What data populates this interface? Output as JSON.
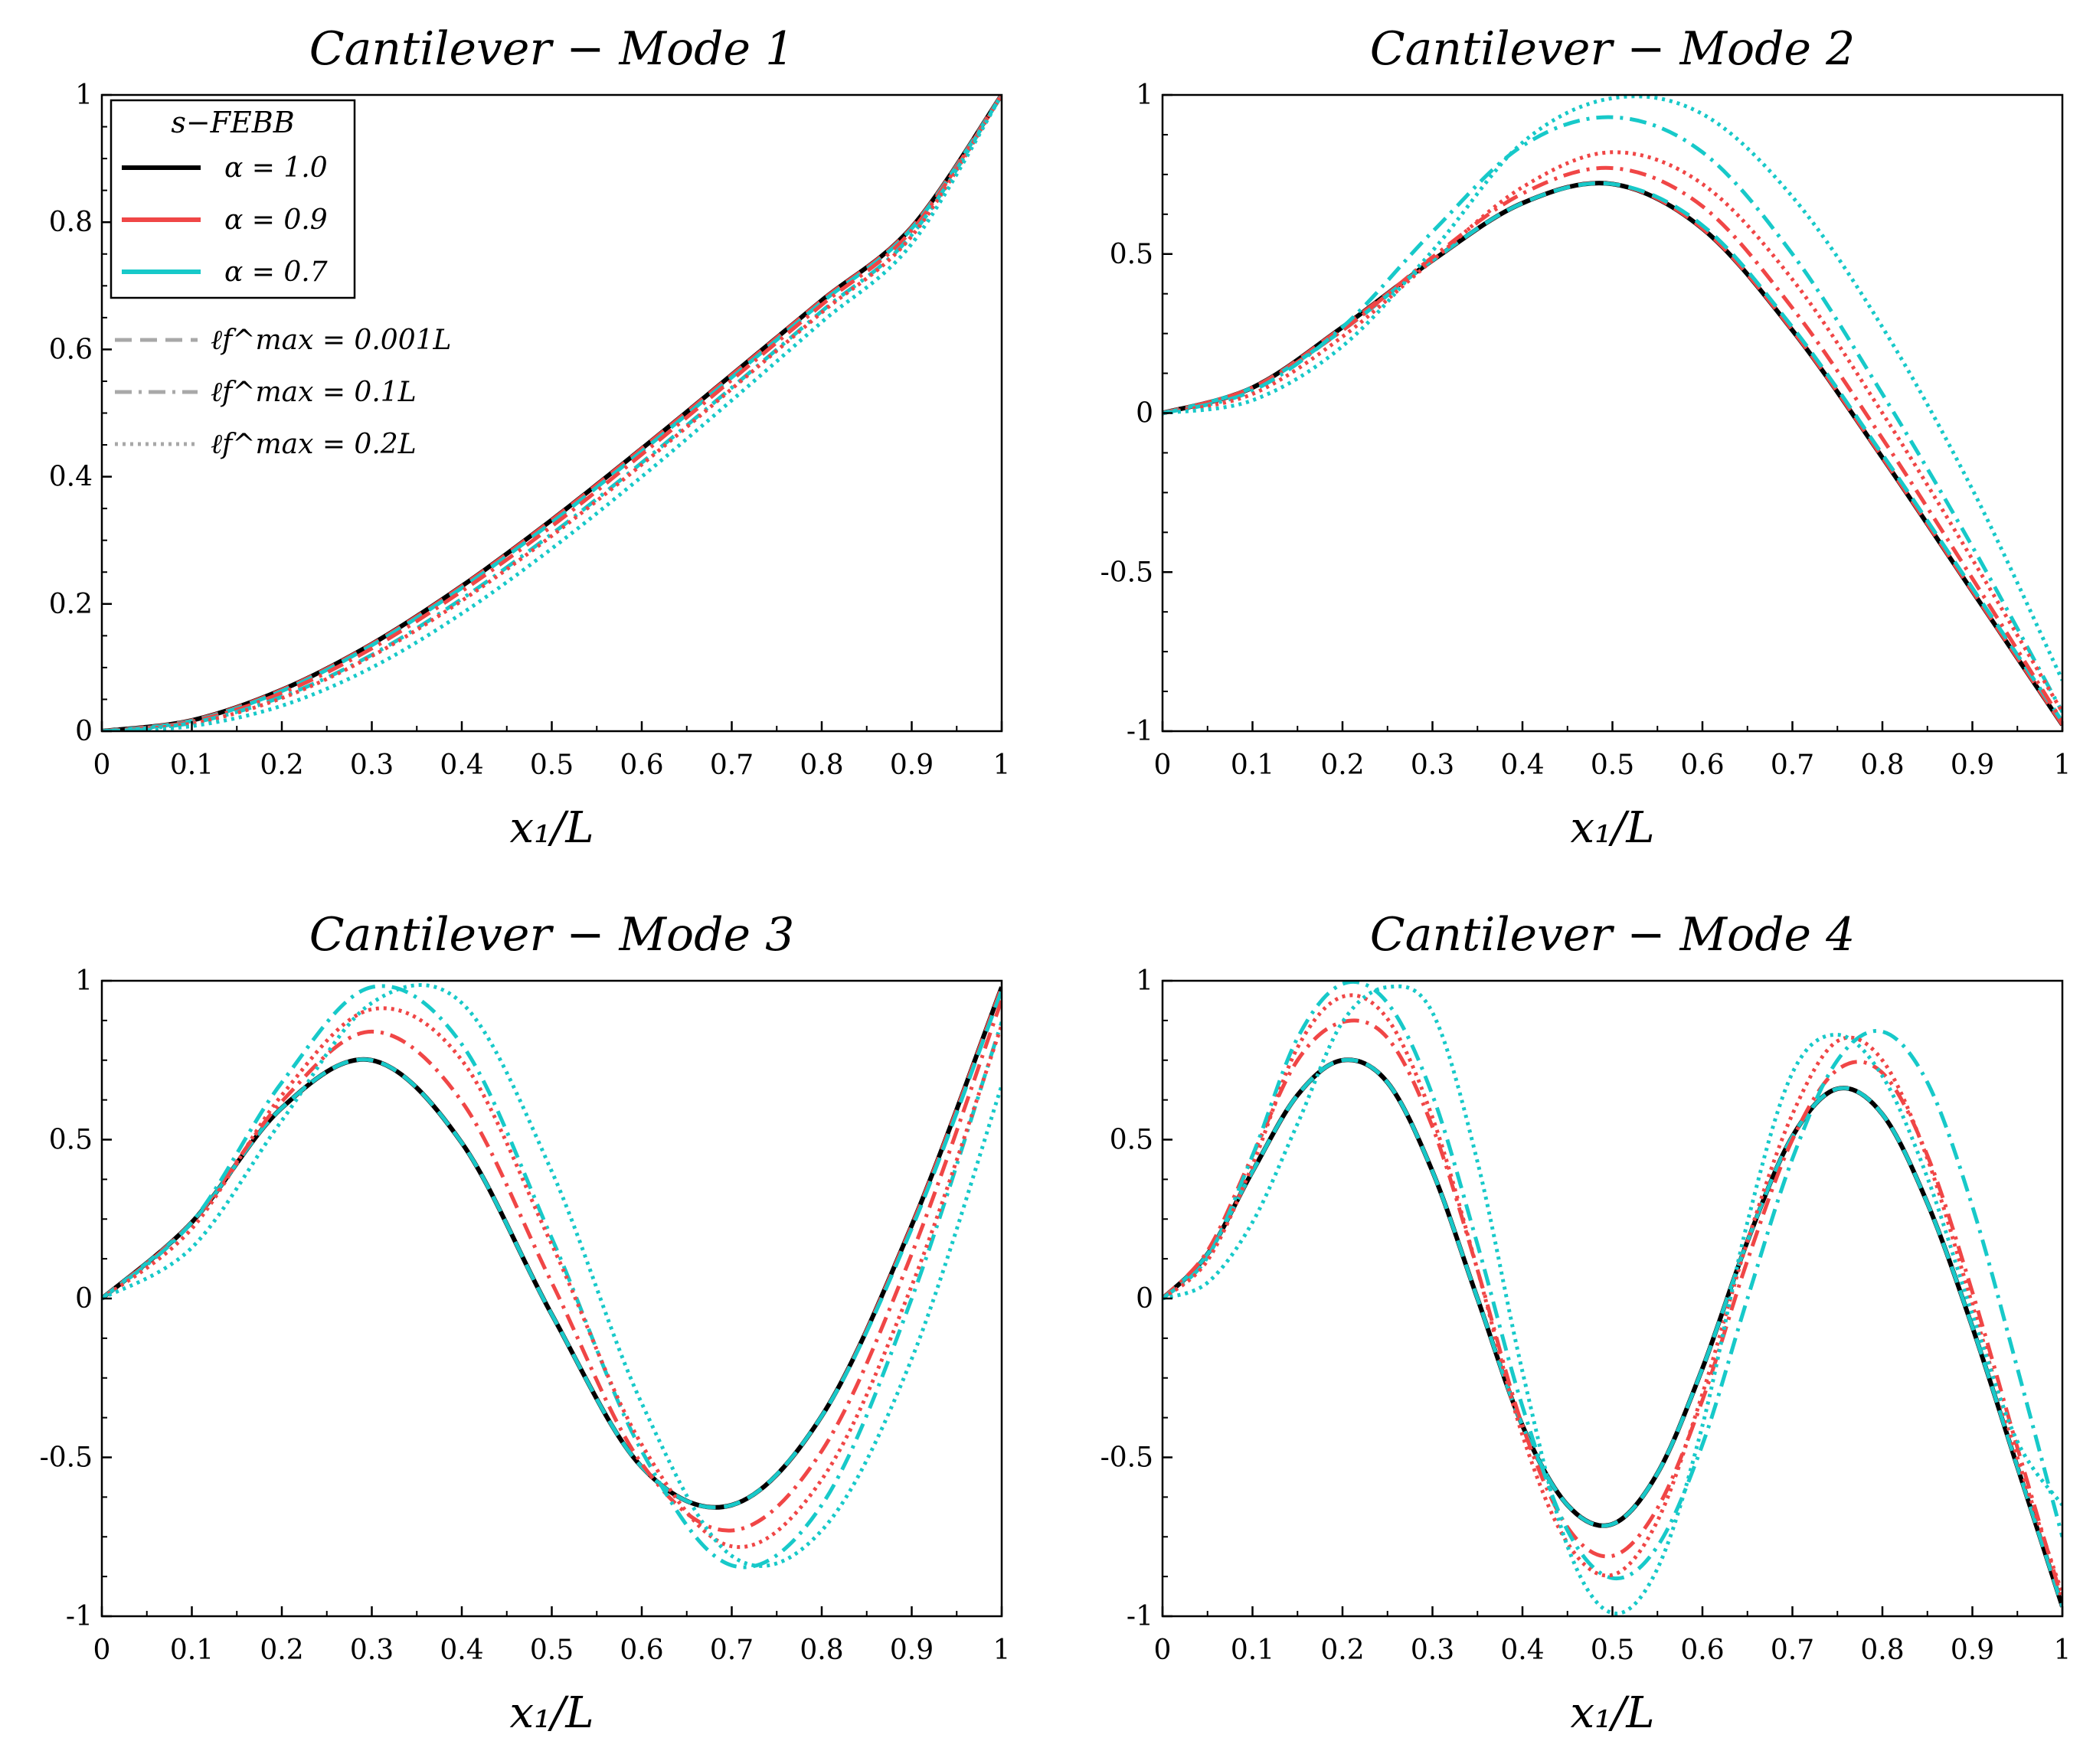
{
  "colors": {
    "black": "#000000",
    "red": "#f04646",
    "cyan": "#17c9c9",
    "gray": "#a8a8a8"
  },
  "legend": {
    "title": "s−FEBB",
    "alpha_entries": [
      "α = 1.0",
      "α = 0.9",
      "α = 0.7"
    ],
    "length_entries": [
      "ℓf^max = 0.001L",
      "ℓf^max = 0.1L",
      "ℓf^max = 0.2L"
    ]
  },
  "chart_data": [
    {
      "type": "line",
      "title": "Cantilever − Mode 1",
      "xlabel": "x₁/L",
      "ylabel": "",
      "xlim": [
        0,
        1
      ],
      "ylim": [
        0,
        1
      ],
      "xticks": [
        "0",
        "0.1",
        "0.2",
        "0.3",
        "0.4",
        "0.5",
        "0.6",
        "0.7",
        "0.8",
        "0.9",
        "1"
      ],
      "yticks": [
        "0",
        "0.2",
        "0.4",
        "0.6",
        "0.8",
        "1"
      ],
      "x": [
        0,
        0.1,
        0.2,
        0.3,
        0.4,
        0.5,
        0.6,
        0.7,
        0.8,
        0.9,
        1.0
      ],
      "series": [
        {
          "name": "α = 1.0, ℓ = 0.001L",
          "color": "black",
          "style": "solid",
          "values": [
            0,
            0.017,
            0.065,
            0.137,
            0.228,
            0.332,
            0.444,
            0.56,
            0.677,
            0.792,
            1.0
          ]
        },
        {
          "name": "α = 0.9, ℓ = 0.001L",
          "color": "red",
          "style": "dashed",
          "values": [
            0,
            0.017,
            0.065,
            0.137,
            0.228,
            0.332,
            0.444,
            0.56,
            0.677,
            0.792,
            1.0
          ]
        },
        {
          "name": "α = 0.7, ℓ = 0.001L",
          "color": "cyan",
          "style": "dashed",
          "values": [
            0,
            0.016,
            0.063,
            0.135,
            0.225,
            0.328,
            0.44,
            0.556,
            0.674,
            0.79,
            1.0
          ]
        },
        {
          "name": "α = 0.9, ℓ = 0.1L",
          "color": "red",
          "style": "dashdot",
          "values": [
            0,
            0.015,
            0.06,
            0.13,
            0.22,
            0.322,
            0.435,
            0.552,
            0.67,
            0.787,
            1.0
          ]
        },
        {
          "name": "α = 0.7, ℓ = 0.1L",
          "color": "cyan",
          "style": "dashdot",
          "values": [
            0,
            0.013,
            0.054,
            0.12,
            0.208,
            0.31,
            0.422,
            0.54,
            0.66,
            0.78,
            1.0
          ]
        },
        {
          "name": "α = 0.9, ℓ = 0.2L",
          "color": "red",
          "style": "dotted",
          "values": [
            0,
            0.012,
            0.052,
            0.118,
            0.205,
            0.307,
            0.419,
            0.538,
            0.658,
            0.778,
            1.0
          ]
        },
        {
          "name": "α = 0.7, ℓ = 0.2L",
          "color": "cyan",
          "style": "dotted",
          "values": [
            0,
            0.008,
            0.04,
            0.1,
            0.185,
            0.287,
            0.4,
            0.52,
            0.643,
            0.766,
            1.0
          ]
        }
      ]
    },
    {
      "type": "line",
      "title": "Cantilever − Mode 2",
      "xlabel": "x₁/L",
      "ylabel": "",
      "xlim": [
        0,
        1
      ],
      "ylim": [
        -1,
        1
      ],
      "xticks": [
        "0",
        "0.1",
        "0.2",
        "0.3",
        "0.4",
        "0.5",
        "0.6",
        "0.7",
        "0.8",
        "0.9",
        "1"
      ],
      "yticks": [
        "-1",
        "-0.5",
        "0",
        "0.5",
        "1"
      ],
      "x": [
        0,
        0.1,
        0.2,
        0.3,
        0.4,
        0.5,
        0.6,
        0.7,
        0.8,
        0.9,
        1.0
      ],
      "series": [
        {
          "name": "α = 1.0, ℓ = 0.001L",
          "color": "black",
          "style": "solid",
          "values": [
            0,
            0.08,
            0.27,
            0.48,
            0.66,
            0.72,
            0.58,
            0.26,
            -0.14,
            -0.56,
            -0.98
          ]
        },
        {
          "name": "α = 0.9, ℓ = 0.001L",
          "color": "red",
          "style": "dashed",
          "values": [
            0,
            0.08,
            0.27,
            0.48,
            0.66,
            0.72,
            0.58,
            0.26,
            -0.14,
            -0.56,
            -0.98
          ]
        },
        {
          "name": "α = 0.7, ℓ = 0.001L",
          "color": "cyan",
          "style": "dashed",
          "values": [
            0,
            0.08,
            0.26,
            0.48,
            0.66,
            0.72,
            0.59,
            0.27,
            -0.13,
            -0.55,
            -0.97
          ]
        },
        {
          "name": "α = 0.9, ℓ = 0.1L",
          "color": "red",
          "style": "dashdot",
          "values": [
            0,
            0.08,
            0.26,
            0.49,
            0.69,
            0.77,
            0.65,
            0.33,
            -0.08,
            -0.52,
            -0.97
          ]
        },
        {
          "name": "α = 0.7, ℓ = 0.1L",
          "color": "cyan",
          "style": "dashdot",
          "values": [
            0,
            0.07,
            0.27,
            0.57,
            0.84,
            0.93,
            0.82,
            0.5,
            0.06,
            -0.42,
            -0.94
          ]
        },
        {
          "name": "α = 0.9, ℓ = 0.2L",
          "color": "red",
          "style": "dotted",
          "values": [
            0,
            0.06,
            0.24,
            0.48,
            0.71,
            0.82,
            0.72,
            0.42,
            0.0,
            -0.46,
            -0.94
          ]
        },
        {
          "name": "α = 0.7, ℓ = 0.2L",
          "color": "cyan",
          "style": "dotted",
          "values": [
            0,
            0.04,
            0.21,
            0.51,
            0.85,
            0.99,
            0.94,
            0.68,
            0.27,
            -0.24,
            -0.84
          ]
        }
      ]
    },
    {
      "type": "line",
      "title": "Cantilever − Mode 3",
      "xlabel": "x₁/L",
      "ylabel": "",
      "xlim": [
        0,
        1
      ],
      "ylim": [
        -1,
        1
      ],
      "xticks": [
        "0",
        "0.1",
        "0.2",
        "0.3",
        "0.4",
        "0.5",
        "0.6",
        "0.7",
        "0.8",
        "0.9",
        "1"
      ],
      "yticks": [
        "-1",
        "-0.5",
        "0",
        "0.5",
        "1"
      ],
      "x": [
        0,
        0.1,
        0.2,
        0.3,
        0.4,
        0.5,
        0.6,
        0.7,
        0.8,
        0.9,
        1.0
      ],
      "series": [
        {
          "name": "α = 1.0, ℓ = 0.001L",
          "color": "black",
          "style": "solid",
          "values": [
            0,
            0.24,
            0.6,
            0.75,
            0.49,
            -0.05,
            -0.53,
            -0.65,
            -0.37,
            0.23,
            0.98
          ]
        },
        {
          "name": "α = 0.9, ℓ = 0.001L",
          "color": "red",
          "style": "dashed",
          "values": [
            0,
            0.24,
            0.6,
            0.75,
            0.49,
            -0.05,
            -0.53,
            -0.65,
            -0.37,
            0.23,
            0.98
          ]
        },
        {
          "name": "α = 0.7, ℓ = 0.001L",
          "color": "cyan",
          "style": "dashed",
          "values": [
            0,
            0.24,
            0.6,
            0.75,
            0.49,
            -0.05,
            -0.53,
            -0.65,
            -0.37,
            0.22,
            0.97
          ]
        },
        {
          "name": "α = 0.9, ℓ = 0.1L",
          "color": "red",
          "style": "dashdot",
          "values": [
            0,
            0.24,
            0.62,
            0.84,
            0.62,
            0.05,
            -0.52,
            -0.73,
            -0.48,
            0.14,
            0.94
          ]
        },
        {
          "name": "α = 0.7, ℓ = 0.1L",
          "color": "cyan",
          "style": "dashdot",
          "values": [
            0,
            0.24,
            0.68,
            0.98,
            0.8,
            0.19,
            -0.48,
            -0.84,
            -0.65,
            0.0,
            0.87
          ]
        },
        {
          "name": "α = 0.9, ℓ = 0.2L",
          "color": "red",
          "style": "dotted",
          "values": [
            0,
            0.22,
            0.64,
            0.91,
            0.75,
            0.17,
            -0.46,
            -0.78,
            -0.57,
            0.04,
            0.86
          ]
        },
        {
          "name": "α = 0.7, ℓ = 0.2L",
          "color": "cyan",
          "style": "dotted",
          "values": [
            0,
            0.16,
            0.56,
            0.93,
            0.93,
            0.4,
            -0.33,
            -0.81,
            -0.73,
            -0.19,
            0.67
          ]
        }
      ]
    },
    {
      "type": "line",
      "title": "Cantilever − Mode 4",
      "xlabel": "x₁/L",
      "ylabel": "",
      "xlim": [
        0,
        1
      ],
      "ylim": [
        -1,
        1
      ],
      "xticks": [
        "0",
        "0.1",
        "0.2",
        "0.3",
        "0.4",
        "0.5",
        "0.6",
        "0.7",
        "0.8",
        "0.9",
        "1"
      ],
      "yticks": [
        "-1",
        "-0.5",
        "0",
        "0.5",
        "1"
      ],
      "x": [
        0,
        0.05,
        0.1,
        0.15,
        0.2,
        0.25,
        0.3,
        0.35,
        0.4,
        0.45,
        0.5,
        0.55,
        0.6,
        0.65,
        0.7,
        0.75,
        0.8,
        0.85,
        0.9,
        0.95,
        1.0
      ],
      "series": [
        {
          "name": "α = 1.0, ℓ = 0.001L",
          "color": "black",
          "style": "solid",
          "values": [
            0,
            0.14,
            0.4,
            0.64,
            0.75,
            0.68,
            0.4,
            0.0,
            -0.4,
            -0.65,
            -0.71,
            -0.55,
            -0.22,
            0.18,
            0.51,
            0.66,
            0.58,
            0.3,
            -0.09,
            -0.53,
            -0.97
          ]
        },
        {
          "name": "α = 0.9, ℓ = 0.001L",
          "color": "red",
          "style": "dashed",
          "values": [
            0,
            0.14,
            0.4,
            0.64,
            0.75,
            0.68,
            0.4,
            0.0,
            -0.4,
            -0.65,
            -0.71,
            -0.55,
            -0.22,
            0.18,
            0.51,
            0.66,
            0.58,
            0.3,
            -0.09,
            -0.53,
            -0.97
          ]
        },
        {
          "name": "α = 0.7, ℓ = 0.001L",
          "color": "cyan",
          "style": "dashed",
          "values": [
            0,
            0.14,
            0.4,
            0.64,
            0.75,
            0.68,
            0.4,
            0.0,
            -0.4,
            -0.65,
            -0.71,
            -0.55,
            -0.22,
            0.18,
            0.51,
            0.66,
            0.58,
            0.3,
            -0.09,
            -0.53,
            -0.97
          ]
        },
        {
          "name": "α = 0.9, ℓ = 0.1L",
          "color": "red",
          "style": "dashdot",
          "values": [
            0,
            0.15,
            0.45,
            0.75,
            0.87,
            0.82,
            0.54,
            0.09,
            -0.4,
            -0.72,
            -0.81,
            -0.66,
            -0.32,
            0.12,
            0.5,
            0.72,
            0.71,
            0.45,
            0.02,
            -0.47,
            -0.95
          ]
        },
        {
          "name": "α = 0.7, ℓ = 0.1L",
          "color": "cyan",
          "style": "dashdot",
          "values": [
            0,
            0.13,
            0.45,
            0.82,
            0.99,
            0.93,
            0.64,
            0.17,
            -0.34,
            -0.73,
            -0.88,
            -0.78,
            -0.46,
            0.0,
            0.44,
            0.75,
            0.84,
            0.68,
            0.29,
            -0.22,
            -0.75
          ]
        },
        {
          "name": "α = 0.9, ℓ = 0.2L",
          "color": "red",
          "style": "dotted",
          "values": [
            0,
            0.12,
            0.42,
            0.79,
            0.95,
            0.88,
            0.57,
            0.09,
            -0.43,
            -0.77,
            -0.87,
            -0.7,
            -0.3,
            0.18,
            0.58,
            0.81,
            0.75,
            0.44,
            -0.02,
            -0.5,
            -0.93
          ]
        },
        {
          "name": "α = 0.7, ℓ = 0.2L",
          "color": "cyan",
          "style": "dotted",
          "values": [
            0,
            0.05,
            0.24,
            0.55,
            0.87,
            0.98,
            0.9,
            0.43,
            -0.23,
            -0.78,
            -0.99,
            -0.85,
            -0.4,
            0.24,
            0.71,
            0.83,
            0.7,
            0.38,
            -0.05,
            -0.45,
            -0.65
          ]
        }
      ]
    }
  ]
}
